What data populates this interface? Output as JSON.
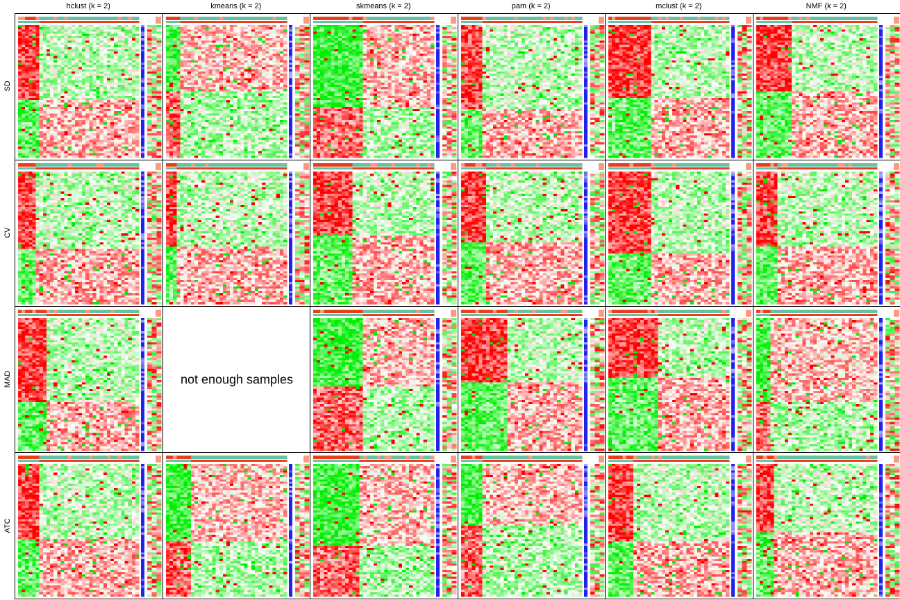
{
  "chart_data": {
    "type": "heatmap",
    "title": "",
    "columns": [
      "hclust (k = 2)",
      "kmeans (k = 2)",
      "skmeans (k = 2)",
      "pam (k = 2)",
      "mclust (k = 2)",
      "NMF (k = 2)"
    ],
    "rows": [
      "SD",
      "CV",
      "MAD",
      "ATC"
    ],
    "empty_panel_message": "not enough samples",
    "panels": [
      {
        "row": "SD",
        "method": "hclust",
        "k": 2,
        "available": true,
        "split": 0.18,
        "first_block": "red"
      },
      {
        "row": "SD",
        "method": "kmeans",
        "k": 2,
        "available": true,
        "split": 0.12,
        "first_block": "green"
      },
      {
        "row": "SD",
        "method": "skmeans",
        "k": 2,
        "available": true,
        "split": 0.42,
        "first_block": "green"
      },
      {
        "row": "SD",
        "method": "pam",
        "k": 2,
        "available": true,
        "split": 0.17,
        "first_block": "red"
      },
      {
        "row": "SD",
        "method": "mclust",
        "k": 2,
        "available": true,
        "split": 0.35,
        "first_block": "red"
      },
      {
        "row": "SD",
        "method": "NMF",
        "k": 2,
        "available": true,
        "split": 0.29,
        "first_block": "red"
      },
      {
        "row": "CV",
        "method": "hclust",
        "k": 2,
        "available": true,
        "split": 0.16,
        "first_block": "red"
      },
      {
        "row": "CV",
        "method": "kmeans",
        "k": 2,
        "available": true,
        "split": 0.1,
        "first_block": "red"
      },
      {
        "row": "CV",
        "method": "skmeans",
        "k": 2,
        "available": true,
        "split": 0.33,
        "first_block": "red"
      },
      {
        "row": "CV",
        "method": "pam",
        "k": 2,
        "available": true,
        "split": 0.2,
        "first_block": "red"
      },
      {
        "row": "CV",
        "method": "mclust",
        "k": 2,
        "available": true,
        "split": 0.35,
        "first_block": "red"
      },
      {
        "row": "CV",
        "method": "NMF",
        "k": 2,
        "available": true,
        "split": 0.17,
        "first_block": "red"
      },
      {
        "row": "MAD",
        "method": "hclust",
        "k": 2,
        "available": true,
        "split": 0.24,
        "first_block": "red"
      },
      {
        "row": "MAD",
        "method": "kmeans",
        "k": 2,
        "available": false
      },
      {
        "row": "MAD",
        "method": "skmeans",
        "k": 2,
        "available": true,
        "split": 0.42,
        "first_block": "green"
      },
      {
        "row": "MAD",
        "method": "pam",
        "k": 2,
        "available": true,
        "split": 0.37,
        "first_block": "red"
      },
      {
        "row": "MAD",
        "method": "mclust",
        "k": 2,
        "available": true,
        "split": 0.4,
        "first_block": "red"
      },
      {
        "row": "MAD",
        "method": "NMF",
        "k": 2,
        "available": true,
        "split": 0.12,
        "first_block": "green"
      },
      {
        "row": "ATC",
        "method": "hclust",
        "k": 2,
        "available": true,
        "split": 0.19,
        "first_block": "red"
      },
      {
        "row": "ATC",
        "method": "kmeans",
        "k": 2,
        "available": true,
        "split": 0.21,
        "first_block": "green"
      },
      {
        "row": "ATC",
        "method": "skmeans",
        "k": 2,
        "available": true,
        "split": 0.37,
        "first_block": "green"
      },
      {
        "row": "ATC",
        "method": "pam",
        "k": 2,
        "available": true,
        "split": 0.19,
        "first_block": "green"
      },
      {
        "row": "ATC",
        "method": "mclust",
        "k": 2,
        "available": true,
        "split": 0.21,
        "first_block": "red"
      },
      {
        "row": "ATC",
        "method": "NMF",
        "k": 2,
        "available": true,
        "split": 0.15,
        "first_block": "red"
      }
    ],
    "colors": {
      "high": "#ff0000",
      "mid": "#ffffff",
      "low": "#00ee00",
      "class_a": "#e8401e",
      "class_b": "#66c2a5",
      "annotation_blue": "#2222ee",
      "annotation_light": "#fa9a80",
      "border": "#000000"
    }
  }
}
